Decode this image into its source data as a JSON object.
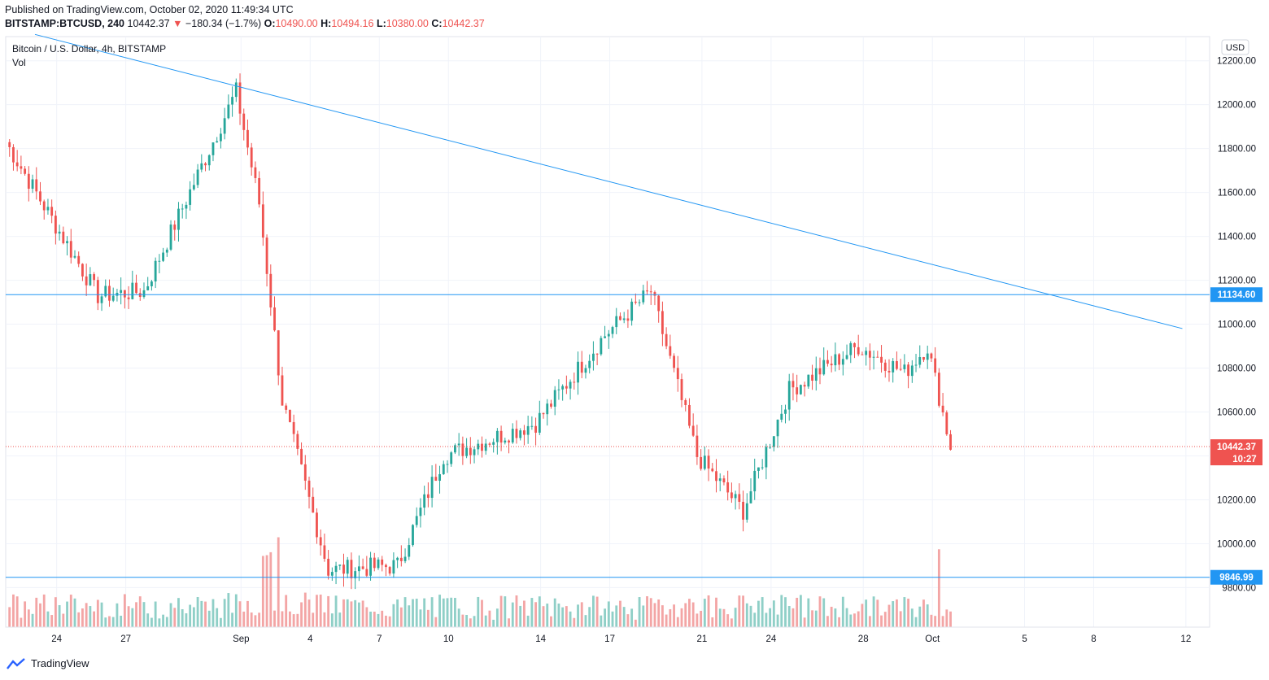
{
  "header": {
    "published": "Published on TradingView.com, October 02, 2020 11:49:34 UTC",
    "symbol": "BITSTAMP:BTCUSD, 240",
    "last": "10442.37",
    "change_arrow": "▼",
    "change": "−180.34 (−1.7%)",
    "o_label": "O:",
    "o_value": "10490.00",
    "h_label": "H:",
    "h_value": "10494.16",
    "l_label": "L:",
    "l_value": "10380.00",
    "c_label": "C:",
    "c_value": "10442.37"
  },
  "legend": {
    "title": "Bitcoin / U.S. Dollar, 4h, BITSTAMP",
    "volume": "Vol"
  },
  "currency_badge": "USD",
  "footer": {
    "brand": "TradingView"
  },
  "colors": {
    "up": "#26a69a",
    "down": "#ef5350",
    "line": "#2196f3",
    "up_vol": "#8fcfc7",
    "down_vol": "#f3a5a5"
  },
  "chart_data": {
    "type": "candlestick",
    "ylim": [
      9620,
      12310
    ],
    "y_ticks": [
      12200,
      12000,
      11800,
      11600,
      11400,
      11200,
      11000,
      10800,
      10600,
      10400,
      10200,
      10000,
      9800
    ],
    "y_tick_labels": [
      "12200.00",
      "12000.00",
      "11800.00",
      "11600.00",
      "11400.00",
      "11200.00",
      "11000.00",
      "10800.00",
      "10600.00",
      "10400.00",
      "10200.00",
      "10000.00",
      "9800.00"
    ],
    "x_tick_labels": [
      "24",
      "27",
      "Sep",
      "4",
      "7",
      "10",
      "14",
      "17",
      "21",
      "24",
      "28",
      "Oct",
      "5",
      "8",
      "12"
    ],
    "horizontal_lines": [
      {
        "value": 11134.6,
        "label": "11134.60"
      },
      {
        "value": 9846.99,
        "label": "9846.99"
      }
    ],
    "trendline": {
      "from": {
        "x": "Aug 22",
        "y": 12320
      },
      "to": {
        "x": "Oct 11",
        "y": 10980
      }
    },
    "last_price": {
      "value": 10442.37,
      "label": "10442.37",
      "countdown": "10:27"
    },
    "candles_summary": [
      {
        "date": "Aug 22",
        "price": 11830
      },
      {
        "date": "Aug 26",
        "price": 11130
      },
      {
        "date": "Aug 28",
        "price": 11150
      },
      {
        "date": "Sep 1",
        "price": 12060
      },
      {
        "date": "Sep 2",
        "price": 11550
      },
      {
        "date": "Sep 3",
        "price": 10650
      },
      {
        "date": "Sep 5",
        "price": 9880
      },
      {
        "date": "Sep 8",
        "price": 9900
      },
      {
        "date": "Sep 10",
        "price": 10400
      },
      {
        "date": "Sep 14",
        "price": 10550
      },
      {
        "date": "Sep 17",
        "price": 10950
      },
      {
        "date": "Sep 19",
        "price": 11150
      },
      {
        "date": "Sep 21",
        "price": 10400
      },
      {
        "date": "Sep 23",
        "price": 10150
      },
      {
        "date": "Sep 25",
        "price": 10700
      },
      {
        "date": "Sep 28",
        "price": 10900
      },
      {
        "date": "Sep 30",
        "price": 10780
      },
      {
        "date": "Oct 1",
        "price": 10900
      },
      {
        "date": "Oct 2",
        "price": 10442
      }
    ]
  }
}
